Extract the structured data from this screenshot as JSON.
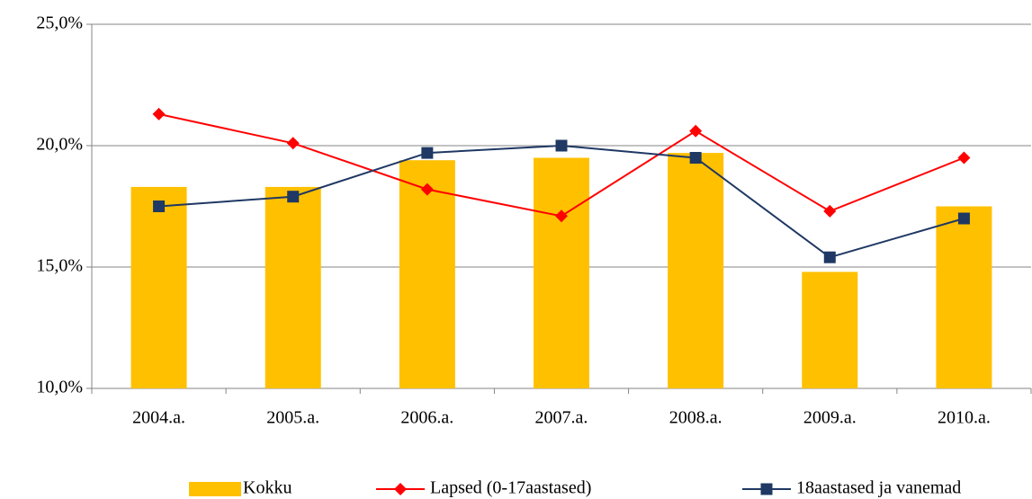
{
  "chart_data": {
    "type": "bar",
    "categories": [
      "2004.a.",
      "2005.a.",
      "2006.a.",
      "2007.a.",
      "2008.a.",
      "2009.a.",
      "2010.a."
    ],
    "series": [
      {
        "name": "Kokku",
        "type": "bar",
        "color": "#ffc000",
        "values": [
          18.3,
          18.3,
          19.4,
          19.5,
          19.7,
          14.8,
          17.5
        ]
      },
      {
        "name": "Lapsed (0-17aastased)",
        "type": "line",
        "marker": "diamond",
        "color": "#ff0000",
        "values": [
          21.3,
          20.1,
          18.2,
          17.1,
          20.6,
          17.3,
          19.5
        ]
      },
      {
        "name": "18aastased ja vanemad",
        "type": "line",
        "marker": "square",
        "color": "#1f3864",
        "values": [
          17.5,
          17.9,
          19.7,
          20.0,
          19.5,
          15.4,
          17.0
        ]
      }
    ],
    "ylim": [
      10,
      25
    ],
    "yticks": [
      {
        "value": 10,
        "label": "10,0%"
      },
      {
        "value": 15,
        "label": "15,0%"
      },
      {
        "value": 20,
        "label": "20,0%"
      },
      {
        "value": 25,
        "label": "25,0%"
      }
    ],
    "grid": true,
    "legend": "bottom"
  }
}
